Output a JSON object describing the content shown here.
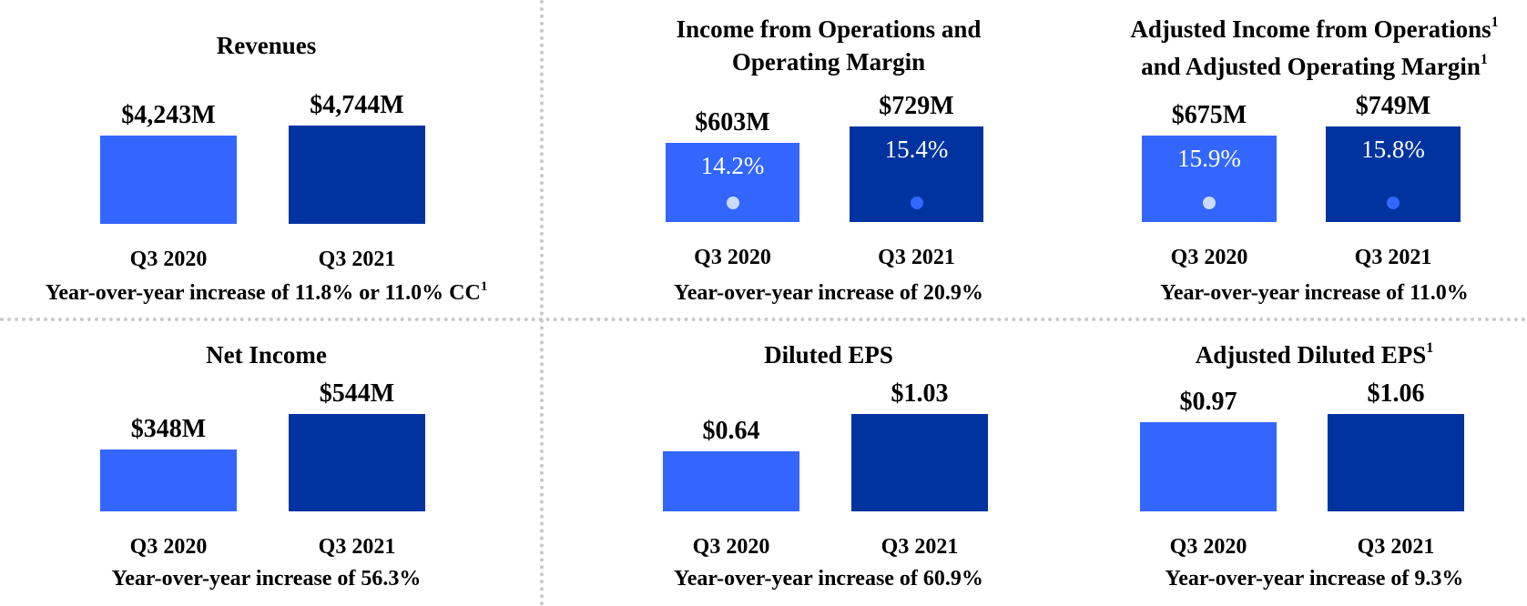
{
  "chart_data": [
    {
      "type": "bar",
      "title": "Revenues",
      "categories": [
        "Q3 2020",
        "Q3 2021"
      ],
      "values": [
        4243,
        4744
      ],
      "unit": "$M",
      "value_labels": [
        "$4,243M",
        "$4,744M"
      ],
      "footnote": "Year-over-year increase of 11.8% or 11.0% CC",
      "footnote_sup": "1"
    },
    {
      "type": "bar",
      "title": "Income from Operations and Operating Margin",
      "title_lines": [
        "Income from Operations and",
        "Operating Margin"
      ],
      "categories": [
        "Q3 2020",
        "Q3 2021"
      ],
      "values": [
        603,
        729
      ],
      "unit": "$M",
      "value_labels": [
        "$603M",
        "$729M"
      ],
      "margins": [
        "14.2%",
        "15.4%"
      ],
      "margin_values": [
        14.2,
        15.4
      ],
      "footnote": "Year-over-year increase of 20.9%"
    },
    {
      "type": "bar",
      "title": "Adjusted Income from Operations and Adjusted Operating Margin",
      "title_lines": [
        "Adjusted Income from Operations",
        "and Adjusted Operating Margin"
      ],
      "title_sups": [
        "1",
        "1"
      ],
      "categories": [
        "Q3 2020",
        "Q3 2021"
      ],
      "values": [
        675,
        749
      ],
      "unit": "$M",
      "value_labels": [
        "$675M",
        "$749M"
      ],
      "margins": [
        "15.9%",
        "15.8%"
      ],
      "margin_values": [
        15.9,
        15.8
      ],
      "footnote": "Year-over-year increase of 11.0%"
    },
    {
      "type": "bar",
      "title": "Net Income",
      "categories": [
        "Q3 2020",
        "Q3 2021"
      ],
      "values": [
        348,
        544
      ],
      "unit": "$M",
      "value_labels": [
        "$348M",
        "$544M"
      ],
      "footnote": "Year-over-year increase of 56.3%"
    },
    {
      "type": "bar",
      "title": "Diluted EPS",
      "categories": [
        "Q3 2020",
        "Q3 2021"
      ],
      "values": [
        0.64,
        1.03
      ],
      "unit": "$",
      "value_labels": [
        "$0.64",
        "$1.03"
      ],
      "footnote": "Year-over-year increase of 60.9%"
    },
    {
      "type": "bar",
      "title": "Adjusted Diluted EPS",
      "title_sup": "1",
      "categories": [
        "Q3 2020",
        "Q3 2021"
      ],
      "values": [
        0.97,
        1.06
      ],
      "unit": "$",
      "value_labels": [
        "$0.97",
        "$1.06"
      ],
      "footnote": "Year-over-year increase of 9.3%"
    }
  ],
  "colors": {
    "prior_year": "#3366ff",
    "current_year": "#0033a0",
    "margin_dot_prior": "#c9dcff",
    "margin_dot_current": "#3366ff",
    "separator": "#c8c8c8"
  }
}
